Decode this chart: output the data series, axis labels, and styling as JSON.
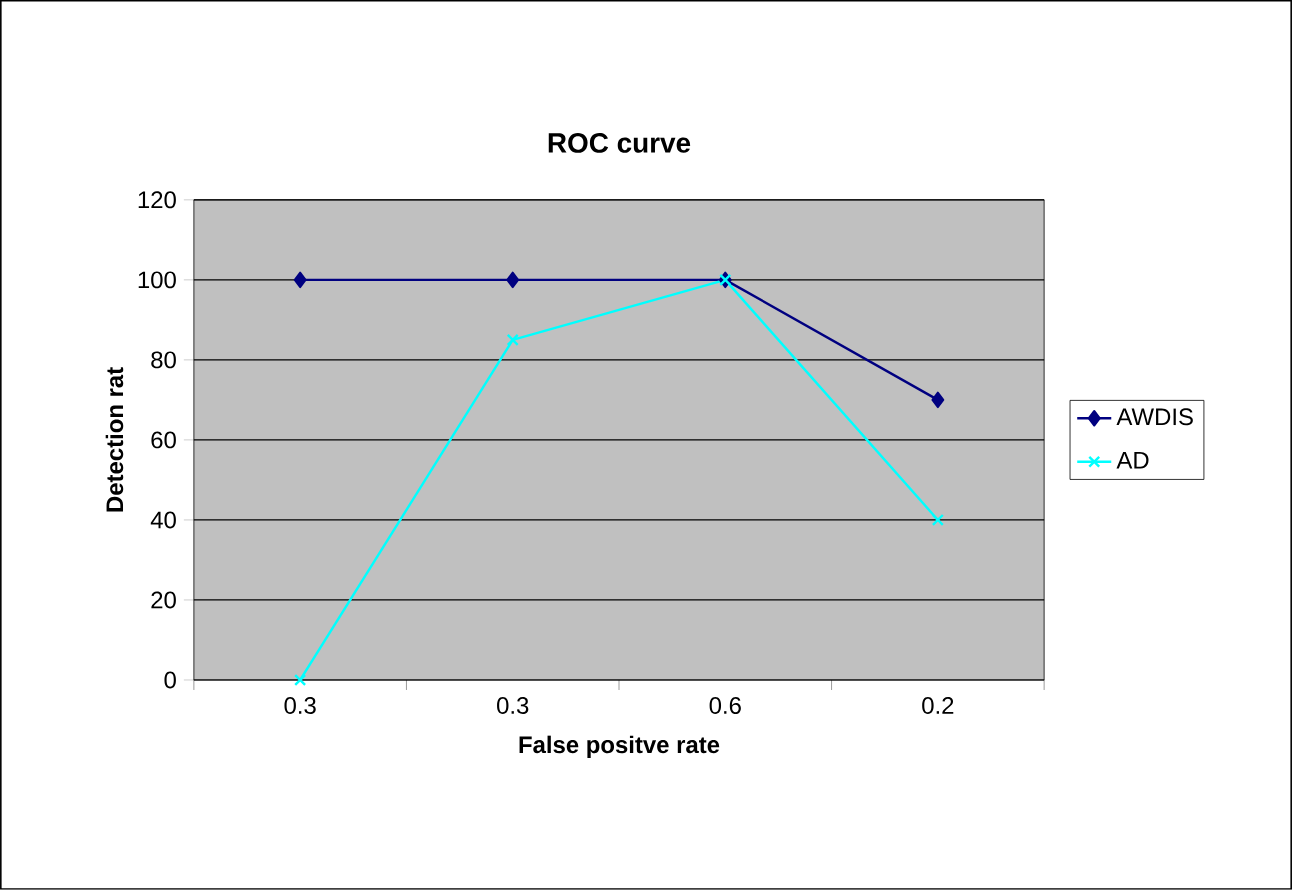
{
  "chart_data": {
    "type": "line",
    "title": "ROC curve",
    "xlabel": "False positve rate",
    "ylabel": "Detection rat",
    "categories": [
      "0.3",
      "0.3",
      "0.6",
      "0.2"
    ],
    "series": [
      {
        "name": "AWDIS",
        "color": "#000080",
        "marker": "diamond",
        "values": [
          100,
          100,
          100,
          70
        ]
      },
      {
        "name": "AD",
        "color": "#00ffff",
        "marker": "cross",
        "values": [
          0,
          85,
          100,
          40
        ]
      }
    ],
    "ylim": [
      0,
      120
    ],
    "yticks": [
      0,
      20,
      40,
      60,
      80,
      100,
      120
    ],
    "grid": "y",
    "legend": "right"
  }
}
